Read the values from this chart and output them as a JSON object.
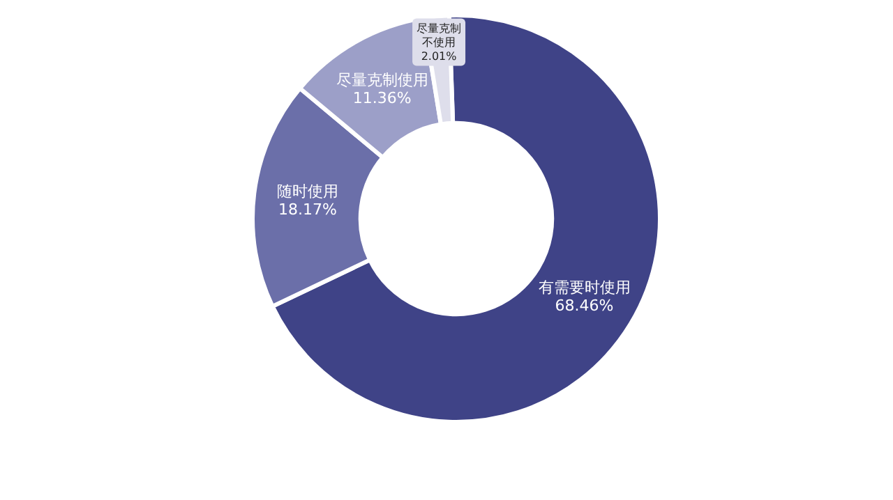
{
  "chart_data": {
    "type": "donut",
    "categories": [
      "有需要时使用",
      "随时使用",
      "尽量克制使用",
      "尽量克制不使用"
    ],
    "values": [
      68.46,
      18.17,
      11.36,
      2.01
    ],
    "colors": [
      "#3f4387",
      "#6b6fa9",
      "#9c9fc8",
      "#dedeeb"
    ],
    "value_labels": [
      "68.46%",
      "18.17%",
      "11.36%",
      "2.01%"
    ]
  }
}
